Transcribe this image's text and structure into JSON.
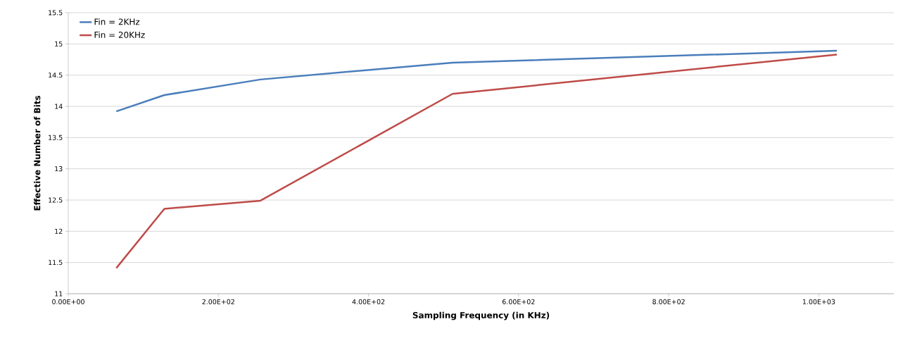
{
  "chart_data": {
    "type": "line",
    "xlabel": "Sampling Frequency (in KHz)",
    "ylabel": "Effective Number of Bits",
    "x": [
      64,
      128,
      256,
      512,
      1024
    ],
    "series": [
      {
        "name": "Fin = 2KHz",
        "color": "#4a7ebb",
        "values": [
          13.92,
          14.18,
          14.43,
          14.7,
          14.89
        ]
      },
      {
        "name": "Fin = 20KHz",
        "color": "#be4b48",
        "values": [
          11.41,
          12.36,
          12.49,
          14.2,
          14.83
        ]
      }
    ],
    "xlim": [
      0,
      1100
    ],
    "xticks": [
      {
        "value": 0,
        "label": "0.00E+00"
      },
      {
        "value": 200,
        "label": "2.00E+02"
      },
      {
        "value": 400,
        "label": "4.00E+02"
      },
      {
        "value": 600,
        "label": "6.00E+02"
      },
      {
        "value": 800,
        "label": "8.00E+02"
      },
      {
        "value": 1000,
        "label": "1.00E+03"
      }
    ],
    "ylim": [
      11,
      15.5
    ],
    "yticks": [
      11,
      11.5,
      12,
      12.5,
      13,
      13.5,
      14,
      14.5,
      15,
      15.5
    ],
    "grid": "y",
    "legend": "top left"
  }
}
